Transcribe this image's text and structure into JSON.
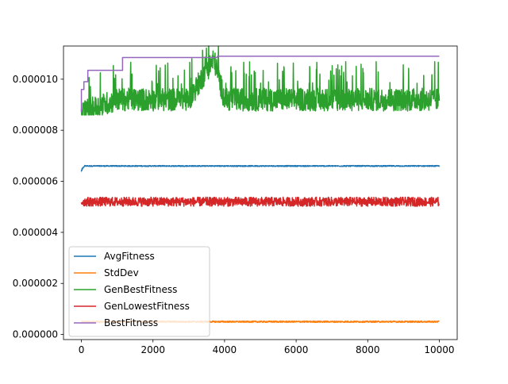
{
  "chart_data": {
    "type": "line",
    "title": "",
    "xlabel": "",
    "ylabel": "",
    "xlim": [
      -500,
      10500
    ],
    "ylim": [
      -2e-07,
      1.13e-05
    ],
    "xticks": [
      0,
      2000,
      4000,
      6000,
      8000,
      10000
    ],
    "xtick_labels": [
      "0",
      "2000",
      "4000",
      "6000",
      "8000",
      "10000"
    ],
    "yticks": [
      0.0,
      2e-06,
      4e-06,
      6e-06,
      8e-06,
      1e-05
    ],
    "ytick_labels": [
      "0.000000",
      "0.000002",
      "0.000004",
      "0.000006",
      "0.000008",
      "0.000010"
    ],
    "grid": false,
    "legend_position": "lower-left",
    "series": [
      {
        "name": "AvgFitness",
        "color": "#1f77b4",
        "x": [
          0,
          30,
          60,
          100,
          200,
          500,
          1000,
          2000,
          3000,
          4000,
          5000,
          6000,
          7000,
          8000,
          9000,
          10000
        ],
        "y": [
          6.4e-06,
          6.5e-06,
          6.55e-06,
          6.6e-06,
          6.6e-06,
          6.6e-06,
          6.6e-06,
          6.6e-06,
          6.6e-06,
          6.6e-06,
          6.6e-06,
          6.6e-06,
          6.6e-06,
          6.6e-06,
          6.6e-06,
          6.6e-06
        ],
        "band": [
          6.57e-06,
          6.62e-06
        ]
      },
      {
        "name": "StdDev",
        "color": "#ff7f0e",
        "x": [
          0,
          1000,
          2000,
          3000,
          4000,
          5000,
          6000,
          7000,
          8000,
          9000,
          10000
        ],
        "y": [
          5e-07,
          5e-07,
          5e-07,
          5e-07,
          5e-07,
          5e-07,
          5e-07,
          5e-07,
          5e-07,
          5e-07,
          5e-07
        ],
        "band": [
          4.7e-07,
          5.3e-07
        ]
      },
      {
        "name": "GenBestFitness",
        "color": "#2ca02c",
        "x": [
          0,
          1000,
          2000,
          3000,
          3700,
          4000,
          5000,
          6000,
          7000,
          8000,
          9000,
          10000
        ],
        "y": [
          8.7e-06,
          9.2e-06,
          9.2e-06,
          9.2e-06,
          1.08e-05,
          9.2e-06,
          9.2e-06,
          9.2e-06,
          9.2e-06,
          9.2e-06,
          9.2e-06,
          9.2e-06
        ],
        "band": [
          8.6e-06,
          1.01e-05
        ]
      },
      {
        "name": "GenLowestFitness",
        "color": "#d62728",
        "x": [
          0,
          1000,
          2000,
          3000,
          4000,
          5000,
          6000,
          7000,
          8000,
          9000,
          10000
        ],
        "y": [
          5.2e-06,
          5.2e-06,
          5.2e-06,
          5.2e-06,
          5.2e-06,
          5.2e-06,
          5.2e-06,
          5.2e-06,
          5.2e-06,
          5.2e-06,
          5.2e-06
        ],
        "band": [
          5e-06,
          5.4e-06
        ]
      },
      {
        "name": "BestFitness",
        "color": "#9467bd",
        "x": [
          0,
          0,
          70,
          70,
          180,
          180,
          1150,
          1150,
          3800,
          3800,
          10000
        ],
        "y": [
          8.7e-06,
          9.6e-06,
          9.6e-06,
          9.9e-06,
          9.9e-06,
          1.035e-05,
          1.035e-05,
          1.085e-05,
          1.085e-05,
          1.09e-05,
          1.09e-05
        ]
      }
    ]
  }
}
